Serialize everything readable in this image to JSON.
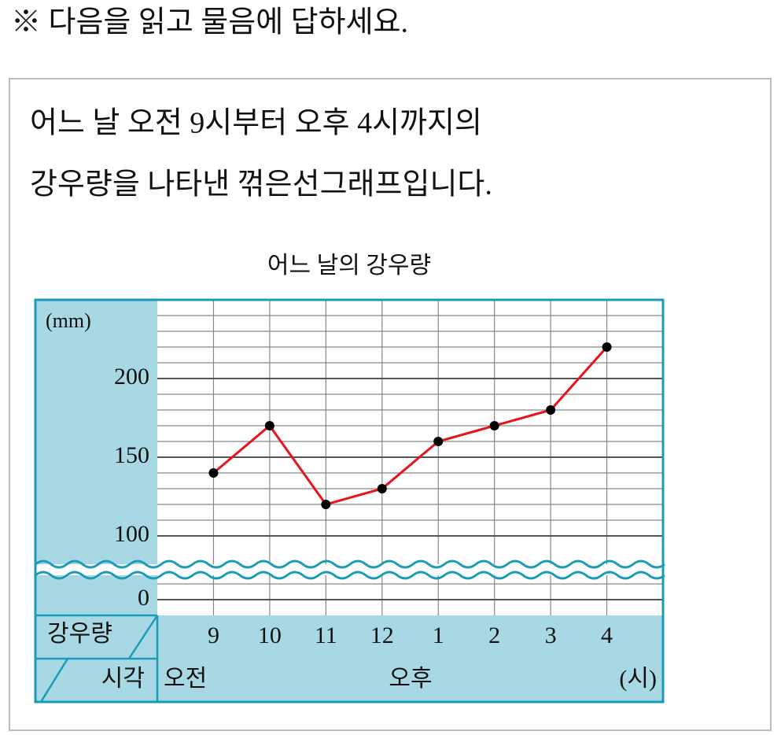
{
  "instruction": "※ 다음을 읽고 물음에 답하세요.",
  "passage": [
    "어느 날 오전 9시부터 오후 4시까지의",
    "강우량을 나타낸 꺾은선그래프입니다."
  ],
  "chart_data": {
    "type": "line",
    "title": "어느 날의 강우량",
    "y_unit": "(mm)",
    "row_header_value": "강우량",
    "row_header_time": "시각",
    "am_label": "오전",
    "pm_label": "오후",
    "x_unit": "(시)",
    "categories": [
      "9",
      "10",
      "11",
      "12",
      "1",
      "2",
      "3",
      "4"
    ],
    "values": [
      140,
      170,
      120,
      130,
      160,
      170,
      180,
      220
    ],
    "color": "#e8141b",
    "marker_color": "#000000",
    "ylim": [
      0,
      250
    ],
    "ybreak": [
      10,
      90
    ],
    "yticks": [
      0,
      100,
      150,
      200
    ],
    "yminor_ticks": [
      10,
      110,
      120,
      130,
      140,
      160,
      170,
      180,
      190,
      210,
      220,
      230,
      240
    ],
    "grid": true
  }
}
